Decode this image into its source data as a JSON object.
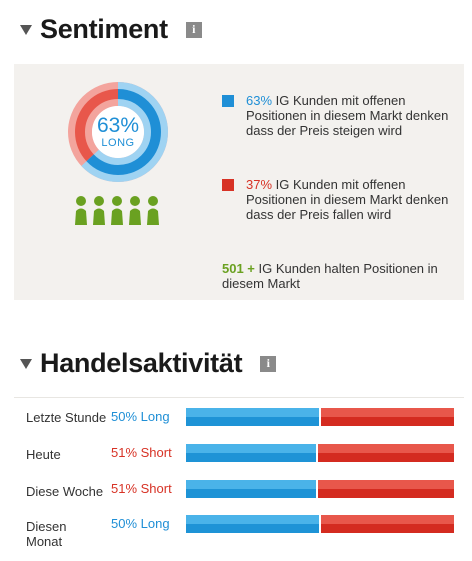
{
  "sentiment": {
    "title": "Sentiment",
    "info_icon": "i",
    "long_percent": 63,
    "donut_text": "63%",
    "donut_label": "LONG",
    "colors": {
      "long": "#1f8fd6",
      "short": "#d73225",
      "people": "#6aa121",
      "panel_bg": "#f3f1ee"
    },
    "long_pct": "63%",
    "long_text": " IG Kunden mit offenen Positionen in diesem Markt denken dass der Preis steigen wird",
    "short_pct": "37%",
    "short_text": " IG Kunden mit offenen Positionen in diesem Markt denken dass der Preis fallen wird",
    "count": "501 +",
    "count_text": " IG Kunden halten Positionen in diesem Markt"
  },
  "activity": {
    "title": "Handelsaktivität",
    "info_icon": "i",
    "rows": [
      {
        "label": "Letzte Stunde",
        "value": "50% Long",
        "direction": "long",
        "long_fraction": 0.5
      },
      {
        "label": "Heute",
        "value": "51% Short",
        "direction": "short",
        "long_fraction": 0.49
      },
      {
        "label": "Diese Woche",
        "value": "51% Short",
        "direction": "short",
        "long_fraction": 0.49
      },
      {
        "label": "Diesen Monat",
        "value": "50% Long",
        "direction": "long",
        "long_fraction": 0.5
      }
    ]
  }
}
